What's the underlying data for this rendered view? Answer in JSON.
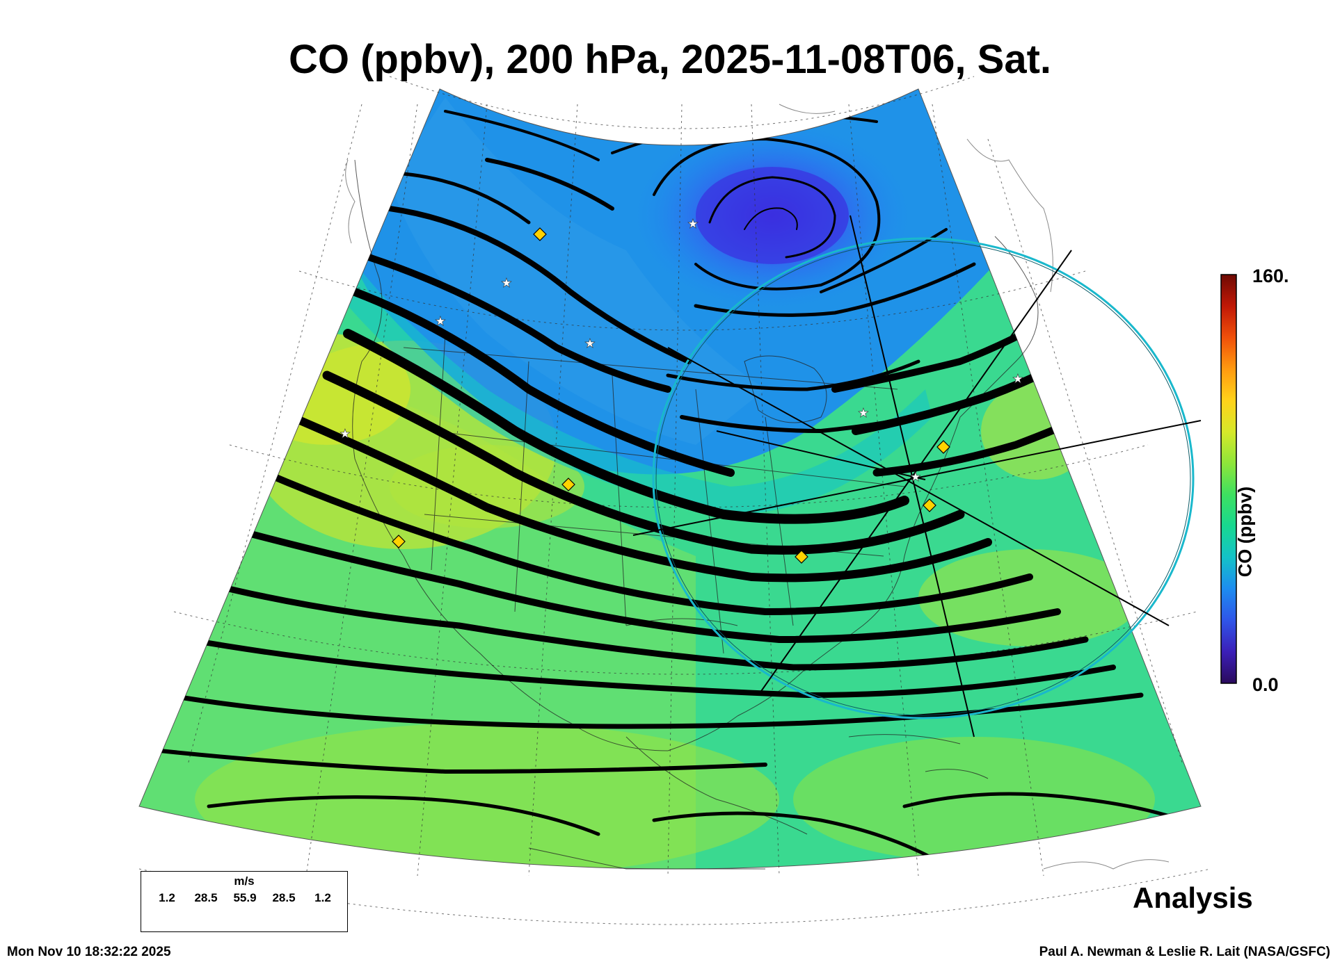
{
  "title": "CO (ppbv), 200 hPa, 2025-11-08T06, Sat.",
  "colorbar": {
    "max_label": "160.",
    "min_label": "0.0",
    "axis_label": "CO (ppbv)",
    "range": [
      0,
      160
    ],
    "colors": [
      "#2a0a5c",
      "#3b1fb8",
      "#2f55e8",
      "#1d8cf0",
      "#14c2c8",
      "#18d890",
      "#3ee060",
      "#8ee63a",
      "#d6e82a",
      "#ffd21a",
      "#ff9a10",
      "#f0500a",
      "#c01806",
      "#6e0a04"
    ]
  },
  "wind_legend": {
    "unit": "m/s",
    "values": [
      "1.2",
      "28.5",
      "55.9",
      "28.5",
      "1.2"
    ]
  },
  "product_label": "Analysis",
  "footer": {
    "timestamp": "Mon Nov 10 18:32:22 2025",
    "credit": "Paul A. Newman & Leslie R. Lait (NASA/GSFC)"
  },
  "map": {
    "projection": "conic",
    "field": "CO 200 hPa",
    "co_colors": {
      "low": "#2f55e8",
      "mid_low": "#1d8cf0",
      "mid": "#18d890",
      "mid_high": "#8ee63a",
      "high": "#d6e82a"
    },
    "overlay_circle_color": "#19b8cc",
    "marker_colors": {
      "diamond": "#ffd200",
      "star": "#ffffff"
    }
  }
}
